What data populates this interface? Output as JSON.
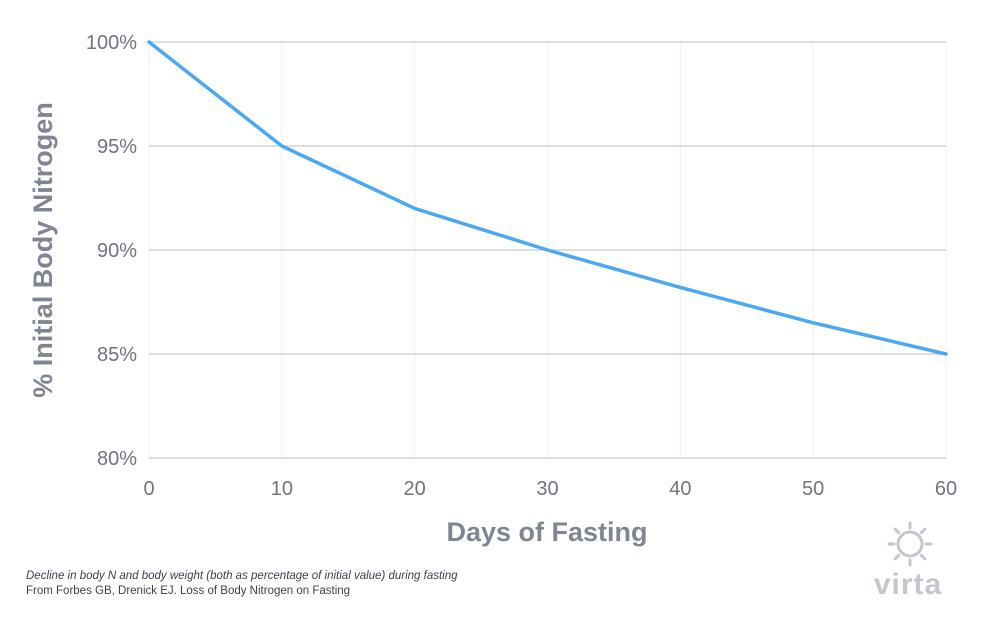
{
  "chart_data": {
    "type": "line",
    "x": [
      0,
      10,
      20,
      30,
      40,
      50,
      60
    ],
    "series": [
      {
        "values": [
          100,
          95,
          92,
          90,
          88.2,
          86.5,
          85
        ],
        "color": "#4aa8f5"
      }
    ],
    "xlabel": "Days of Fasting",
    "ylabel": "% Initial Body Nitrogen",
    "xlim": [
      0,
      60
    ],
    "ylim": [
      80,
      100
    ],
    "xticks": [
      0,
      10,
      20,
      30,
      40,
      50,
      60
    ],
    "yticks": [
      80,
      85,
      90,
      95,
      100
    ],
    "ytick_labels": [
      "80%",
      "85%",
      "90%",
      "95%",
      "100%"
    ],
    "grid": true
  },
  "caption": {
    "line1": "Decline in body N and body weight (both as percentage of initial value) during fasting",
    "line2": "From Forbes GB, Drenick EJ. Loss of Body Nitrogen on Fasting"
  },
  "brand": {
    "name": "virta",
    "icon": "sun-gear-icon"
  }
}
